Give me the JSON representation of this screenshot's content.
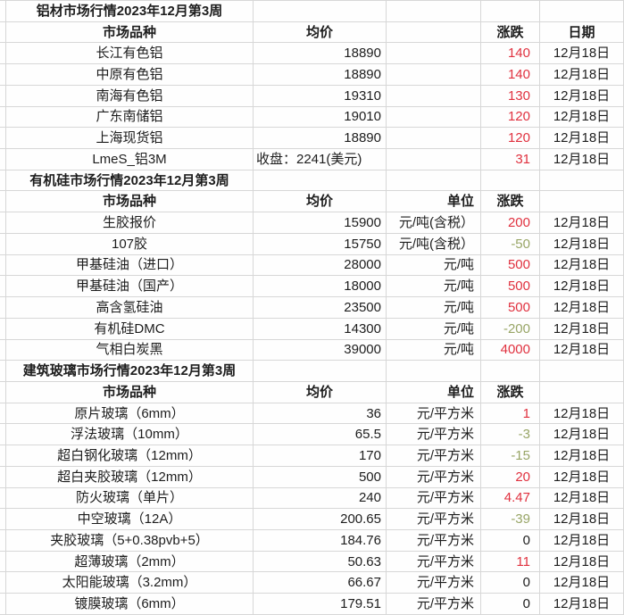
{
  "colors": {
    "up_change": "#e0313f",
    "down_change": "#98a566",
    "text": "#1d1d1d",
    "gridline": "#d7d7d7",
    "background": "#fefefe"
  },
  "sections": [
    {
      "title": "铝材市场行情2023年12月第3周",
      "headers": {
        "product": "市场品种",
        "price": "均价",
        "unit": "",
        "change": "涨跌",
        "date": "日期"
      },
      "rows": [
        {
          "product": "长江有色铝",
          "price": "18890",
          "unit": "",
          "change": "140",
          "trend": "up",
          "date": "12月18日"
        },
        {
          "product": "中原有色铝",
          "price": "18890",
          "unit": "",
          "change": "140",
          "trend": "up",
          "date": "12月18日"
        },
        {
          "product": "南海有色铝",
          "price": "19310",
          "unit": "",
          "change": "130",
          "trend": "up",
          "date": "12月18日"
        },
        {
          "product": "广东南储铝",
          "price": "19010",
          "unit": "",
          "change": "120",
          "trend": "up",
          "date": "12月18日"
        },
        {
          "product": "上海现货铝",
          "price": "18890",
          "unit": "",
          "change": "120",
          "trend": "up",
          "date": "12月18日"
        },
        {
          "product": "LmeS_铝3M",
          "price": "收盘：2241(美元)",
          "price_align": "left",
          "unit": "",
          "change": "31",
          "trend": "up",
          "date": "12月18日"
        }
      ]
    },
    {
      "title": "有机硅市场行情2023年12月第3周",
      "headers": {
        "product": "市场品种",
        "price": "均价",
        "unit": "单位",
        "change": "涨跌",
        "date": ""
      },
      "rows": [
        {
          "product": "生胶报价",
          "price": "15900",
          "unit": "元/吨(含税）",
          "change": "200",
          "trend": "up",
          "date": "12月18日"
        },
        {
          "product": "107胶",
          "price": "15750",
          "unit": "元/吨(含税）",
          "change": "-50",
          "trend": "down",
          "date": "12月18日"
        },
        {
          "product": "甲基硅油（进口）",
          "price": "28000",
          "unit": "元/吨",
          "change": "500",
          "trend": "up",
          "date": "12月18日"
        },
        {
          "product": "甲基硅油（国产）",
          "price": "18000",
          "unit": "元/吨",
          "change": "500",
          "trend": "up",
          "date": "12月18日"
        },
        {
          "product": "高含氢硅油",
          "price": "23500",
          "unit": "元/吨",
          "change": "500",
          "trend": "up",
          "date": "12月18日"
        },
        {
          "product": "有机硅DMC",
          "price": "14300",
          "unit": "元/吨",
          "change": "-200",
          "trend": "down",
          "date": "12月18日"
        },
        {
          "product": "气相白炭黑",
          "price": "39000",
          "unit": "元/吨",
          "change": "4000",
          "trend": "up",
          "date": "12月18日"
        }
      ]
    },
    {
      "title": "建筑玻璃市场行情2023年12月第3周",
      "headers": {
        "product": "市场品种",
        "price": "均价",
        "unit": "单位",
        "change": "涨跌",
        "date": ""
      },
      "rows": [
        {
          "product": "原片玻璃（6mm）",
          "price": "36",
          "unit": "元/平方米",
          "change": "1",
          "trend": "up",
          "date": "12月18日"
        },
        {
          "product": "浮法玻璃（10mm）",
          "price": "65.5",
          "unit": "元/平方米",
          "change": "-3",
          "trend": "down",
          "date": "12月18日"
        },
        {
          "product": "超白钢化玻璃（12mm）",
          "price": "170",
          "unit": "元/平方米",
          "change": "-15",
          "trend": "down",
          "date": "12月18日"
        },
        {
          "product": "超白夹胶玻璃（12mm）",
          "price": "500",
          "unit": "元/平方米",
          "change": "20",
          "trend": "up",
          "date": "12月18日"
        },
        {
          "product": "防火玻璃（单片）",
          "price": "240",
          "unit": "元/平方米",
          "change": "4.47",
          "trend": "up",
          "date": "12月18日"
        },
        {
          "product": "中空玻璃（12A）",
          "price": "200.65",
          "unit": "元/平方米",
          "change": "-39",
          "trend": "down",
          "date": "12月18日"
        },
        {
          "product": "夹胶玻璃（5+0.38pvb+5）",
          "price": "184.76",
          "unit": "元/平方米",
          "change": "0",
          "trend": "flat",
          "date": "12月18日"
        },
        {
          "product": "超薄玻璃（2mm）",
          "price": "50.63",
          "unit": "元/平方米",
          "change": "11",
          "trend": "up",
          "date": "12月18日"
        },
        {
          "product": "太阳能玻璃（3.2mm）",
          "price": "66.67",
          "unit": "元/平方米",
          "change": "0",
          "trend": "flat",
          "date": "12月18日"
        },
        {
          "product": "镀膜玻璃（6mm）",
          "price": "179.51",
          "unit": "元/平方米",
          "change": "0",
          "trend": "flat",
          "date": "12月18日"
        }
      ]
    }
  ]
}
